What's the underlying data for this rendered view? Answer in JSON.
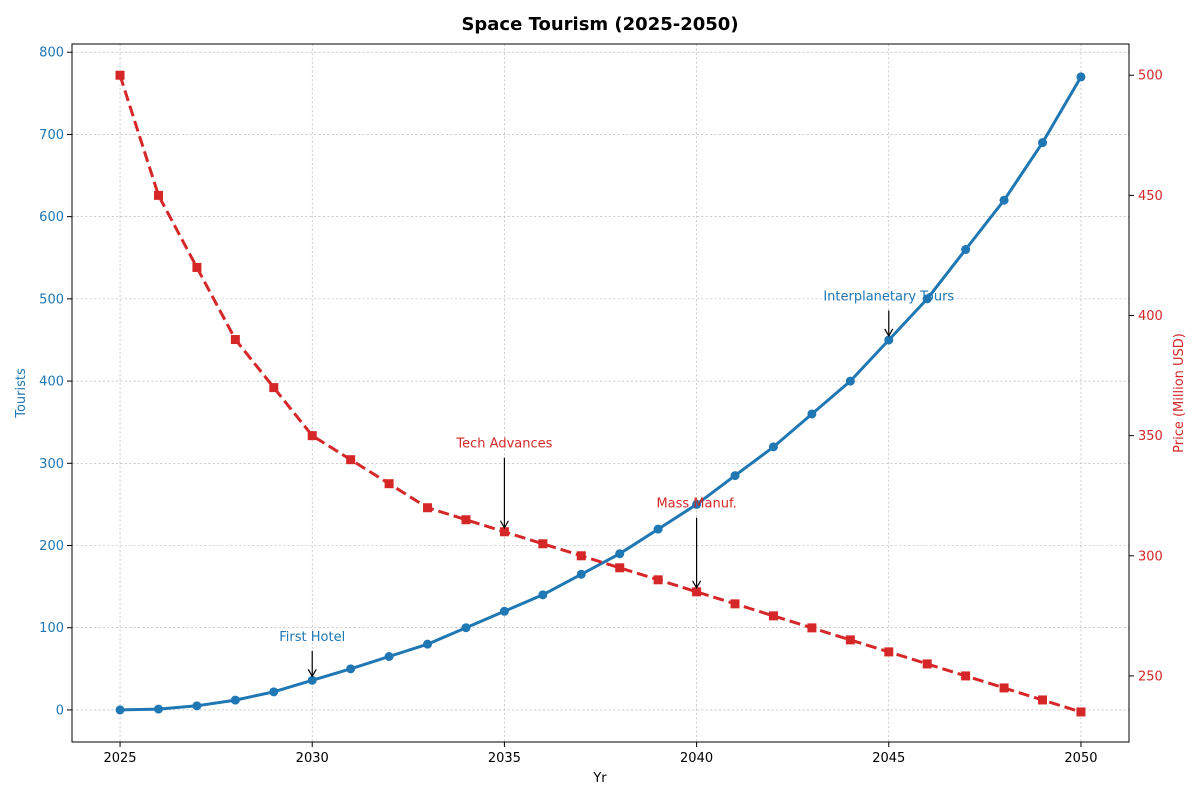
{
  "chart_data": {
    "type": "line",
    "title": "Space Tourism (2025-2050)",
    "xlabel": "Yr",
    "ylabel_left": "Tourists",
    "ylabel_right": "Price (Million USD)",
    "xlim": [
      2023.75,
      2051.25
    ],
    "ylim_left": [
      -39,
      810
    ],
    "ylim_right": [
      222.5,
      513
    ],
    "x_ticks": [
      2025,
      2030,
      2035,
      2040,
      2045,
      2050
    ],
    "y_left_ticks": [
      0,
      100,
      200,
      300,
      400,
      500,
      600,
      700,
      800
    ],
    "y_right_ticks": [
      250,
      300,
      350,
      400,
      450,
      500
    ],
    "grid": true,
    "x": [
      2025,
      2026,
      2027,
      2028,
      2029,
      2030,
      2031,
      2032,
      2033,
      2034,
      2035,
      2036,
      2037,
      2038,
      2039,
      2040,
      2041,
      2042,
      2043,
      2044,
      2045,
      2046,
      2047,
      2048,
      2049,
      2050
    ],
    "series": [
      {
        "axis": "left",
        "color": "#1f77b4",
        "style": "solid",
        "marker": "circle",
        "values": [
          0,
          1,
          5,
          12,
          22,
          36,
          50,
          65,
          80,
          100,
          120,
          140,
          165,
          190,
          220,
          250,
          285,
          320,
          360,
          400,
          450,
          500,
          560,
          620,
          690,
          770
        ]
      },
      {
        "axis": "right",
        "color": "#d62728",
        "style": "dashed",
        "marker": "square",
        "values": [
          500,
          450,
          420,
          390,
          370,
          350,
          340,
          330,
          320,
          315,
          310,
          305,
          300,
          295,
          290,
          285,
          280,
          275,
          270,
          265,
          260,
          255,
          250,
          245,
          240,
          235
        ]
      }
    ],
    "annotations": [
      {
        "text": "First Hotel",
        "x": 2030,
        "y": 36,
        "text_y": 84,
        "axis": "left",
        "color": "#1f77b4"
      },
      {
        "text": "Interplanetary Tours",
        "x": 2045,
        "y": 450,
        "text_y": 498,
        "axis": "left",
        "color": "#1f77b4"
      },
      {
        "text": "Tech Advances",
        "x": 2035,
        "y": 310,
        "text_y": 345,
        "axis": "right",
        "color": "#d62728"
      },
      {
        "text": "Mass Manuf.",
        "x": 2040,
        "y": 285,
        "text_y": 320,
        "axis": "right",
        "color": "#d62728"
      }
    ]
  }
}
